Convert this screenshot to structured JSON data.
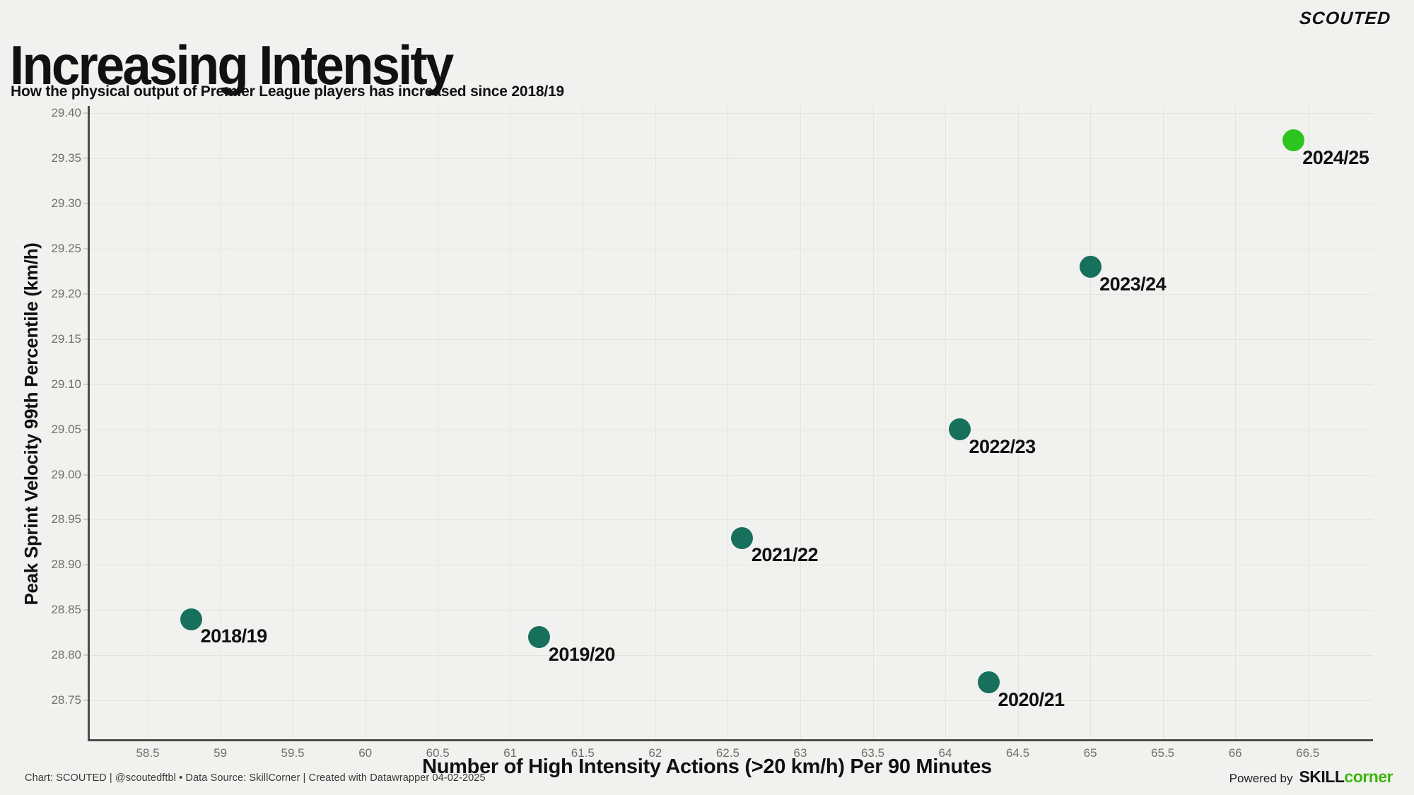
{
  "header": {
    "title": "Increasing Intensity",
    "subtitle": "How the physical output of Premier League players has increased since 2018/19",
    "brand": "SCOUTED"
  },
  "chart_data": {
    "type": "scatter",
    "title": "Increasing Intensity",
    "xlabel": "Number of High Intensity Actions (>20 km/h) Per 90 Minutes",
    "ylabel": "Peak Sprint Velocity 99th Percentile (km/h)",
    "xlim": [
      58.1,
      66.95
    ],
    "ylim": [
      28.707,
      29.408
    ],
    "grid": true,
    "legend": "none",
    "x_ticks": [
      {
        "v": 58.5,
        "label": "58.5"
      },
      {
        "v": 59,
        "label": "59"
      },
      {
        "v": 59.5,
        "label": "59.5"
      },
      {
        "v": 60,
        "label": "60"
      },
      {
        "v": 60.5,
        "label": "60.5"
      },
      {
        "v": 61,
        "label": "61"
      },
      {
        "v": 61.5,
        "label": "61.5"
      },
      {
        "v": 62,
        "label": "62"
      },
      {
        "v": 62.5,
        "label": "62.5"
      },
      {
        "v": 63,
        "label": "63"
      },
      {
        "v": 63.5,
        "label": "63.5"
      },
      {
        "v": 64,
        "label": "64"
      },
      {
        "v": 64.5,
        "label": "64.5"
      },
      {
        "v": 65,
        "label": "65"
      },
      {
        "v": 65.5,
        "label": "65.5"
      },
      {
        "v": 66,
        "label": "66"
      },
      {
        "v": 66.5,
        "label": "66.5"
      }
    ],
    "y_ticks": [
      {
        "v": 29.4,
        "label": "29.40"
      },
      {
        "v": 29.35,
        "label": "29.35"
      },
      {
        "v": 29.3,
        "label": "29.30"
      },
      {
        "v": 29.25,
        "label": "29.25"
      },
      {
        "v": 29.2,
        "label": "29.20"
      },
      {
        "v": 29.15,
        "label": "29.15"
      },
      {
        "v": 29.1,
        "label": "29.10"
      },
      {
        "v": 29.05,
        "label": "29.05"
      },
      {
        "v": 29.0,
        "label": "29.00"
      },
      {
        "v": 28.95,
        "label": "28.95"
      },
      {
        "v": 28.9,
        "label": "28.90"
      },
      {
        "v": 28.85,
        "label": "28.85"
      },
      {
        "v": 28.8,
        "label": "28.80"
      },
      {
        "v": 28.75,
        "label": "28.75"
      }
    ],
    "points": [
      {
        "label": "2018/19",
        "x": 58.8,
        "y": 28.84,
        "color": "#17705b"
      },
      {
        "label": "2019/20",
        "x": 61.2,
        "y": 28.82,
        "color": "#17705b"
      },
      {
        "label": "2020/21",
        "x": 64.3,
        "y": 28.77,
        "color": "#17705b"
      },
      {
        "label": "2021/22",
        "x": 62.6,
        "y": 28.93,
        "color": "#17705b"
      },
      {
        "label": "2022/23",
        "x": 64.1,
        "y": 29.05,
        "color": "#17705b"
      },
      {
        "label": "2023/24",
        "x": 65.0,
        "y": 29.23,
        "color": "#17705b"
      },
      {
        "label": "2024/25",
        "x": 66.4,
        "y": 29.37,
        "color": "#2ec41f"
      }
    ],
    "point_color_default": "#17705b",
    "point_color_highlight": "#2ec41f"
  },
  "footer": {
    "credit": "Chart: SCOUTED | @scoutedftbl • Data Source: SkillCorner | Created with Datawrapper 04-02-2025",
    "powered_by": "Powered by",
    "brand_dark": "SKILL",
    "brand_green": "corner",
    "brand_green_color": "#3eb50f"
  }
}
